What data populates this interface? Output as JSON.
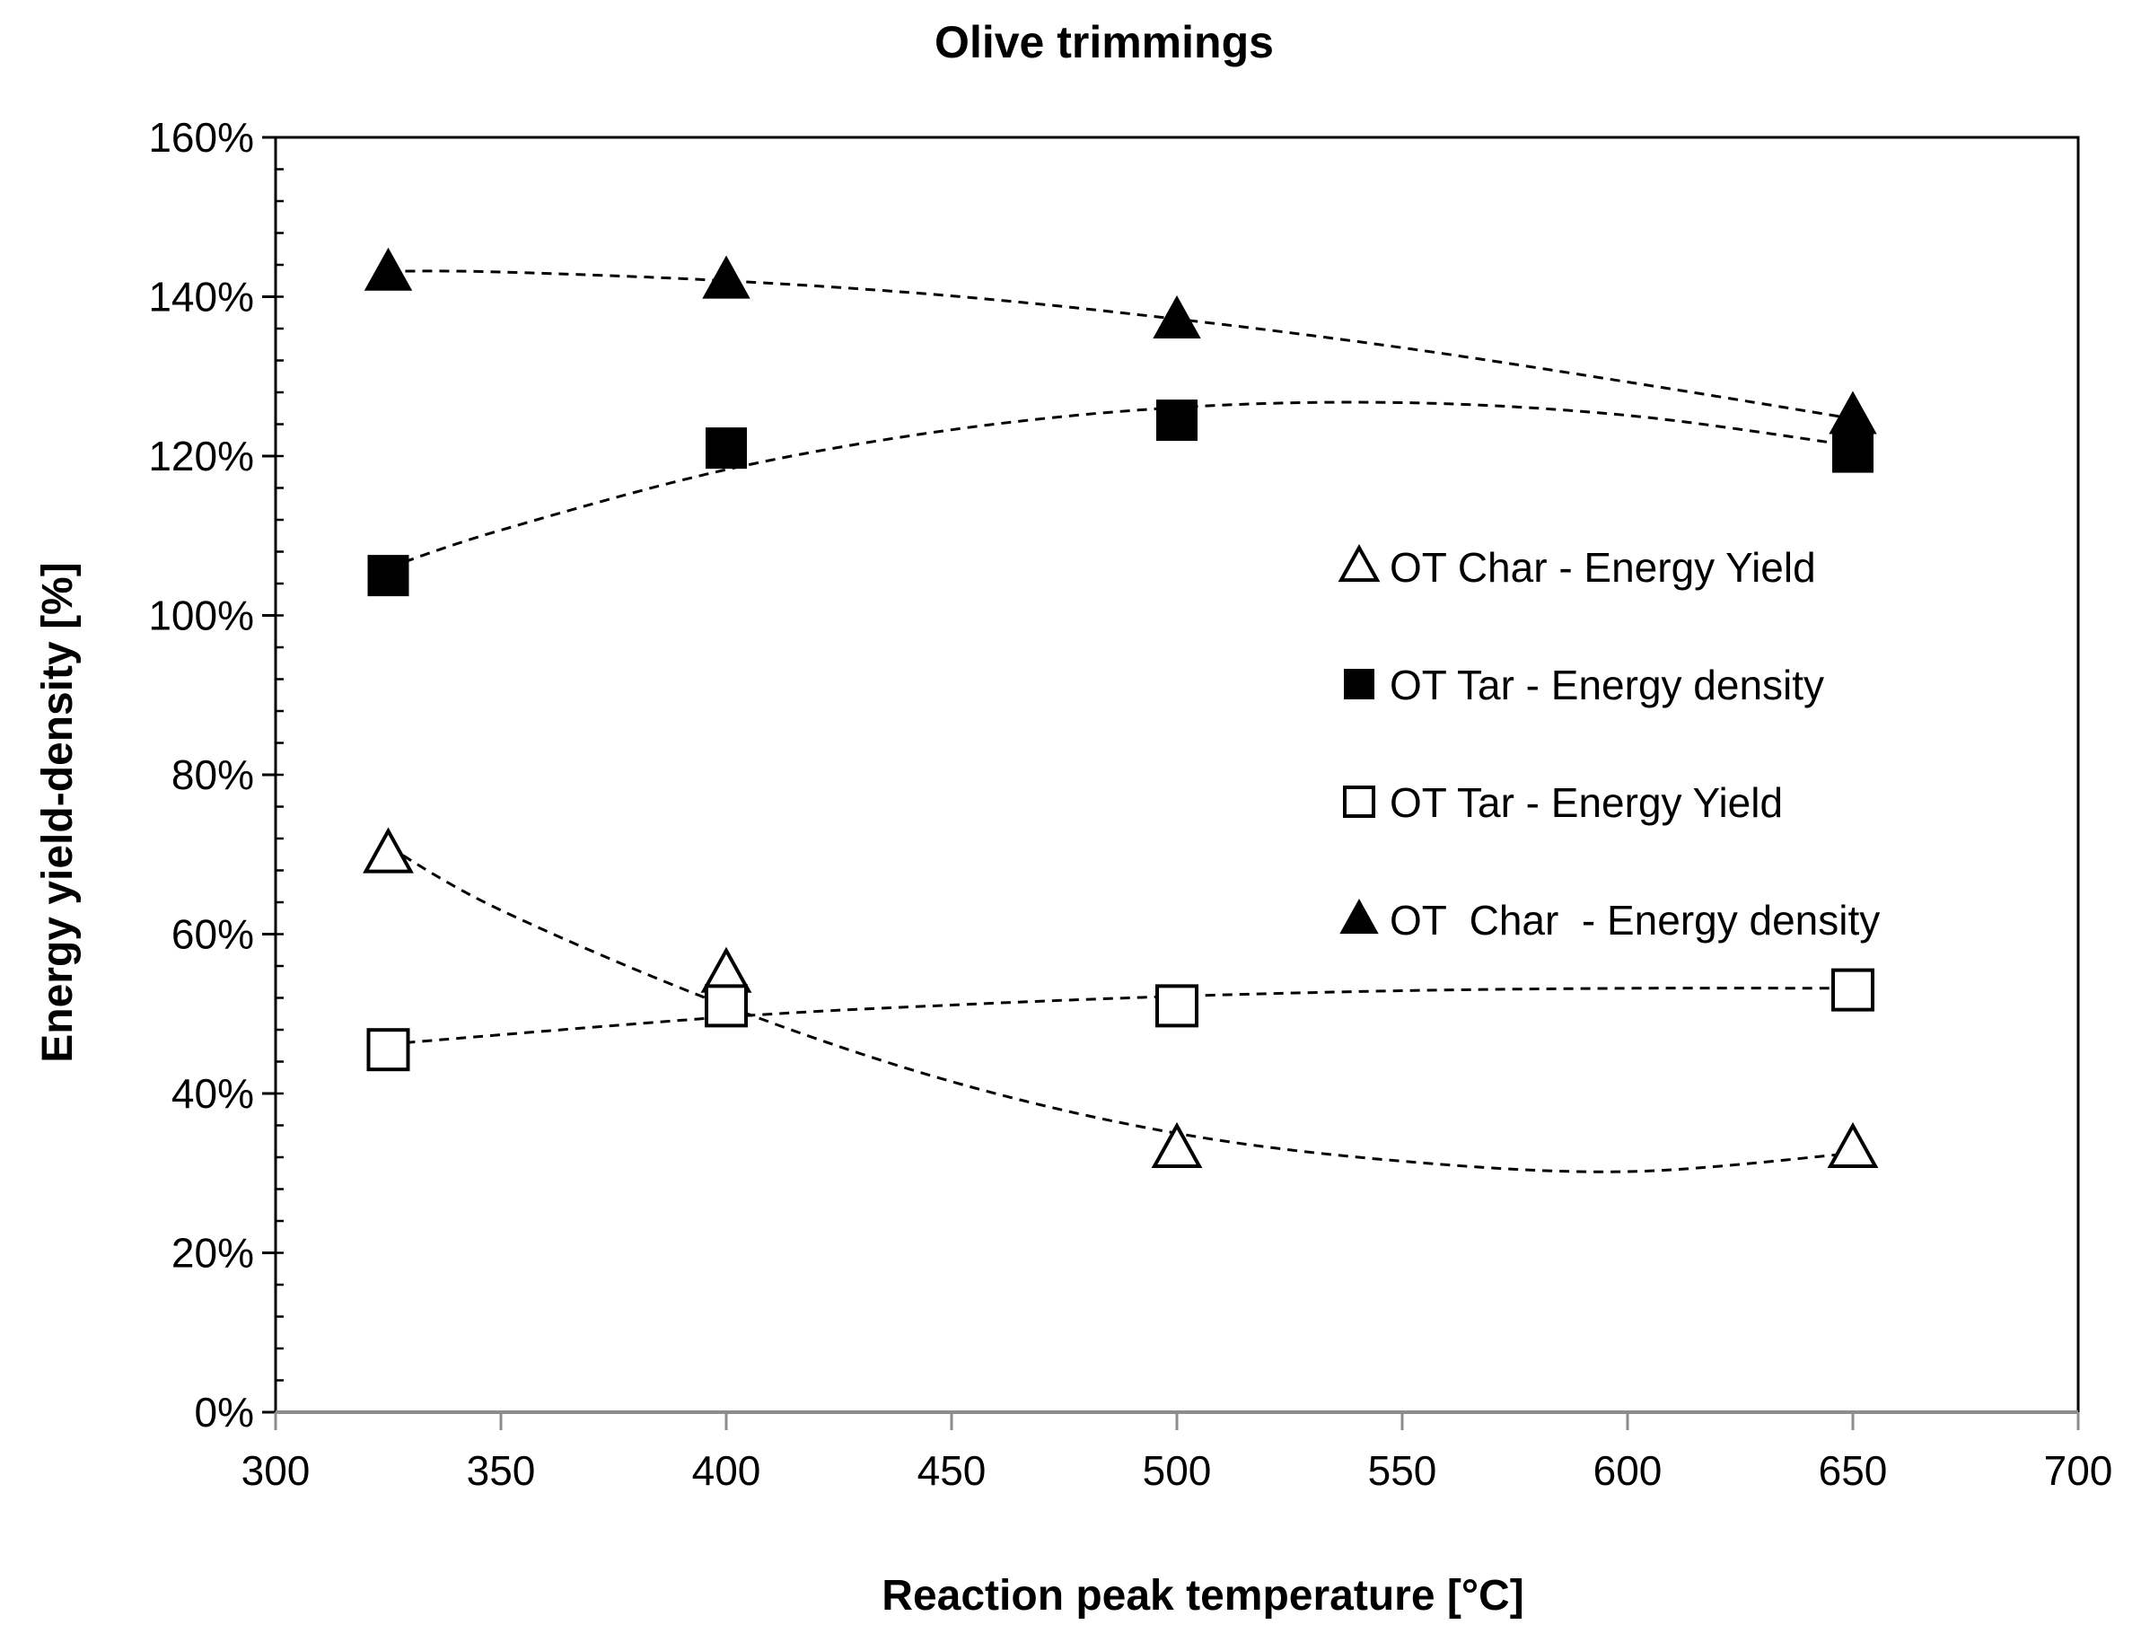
{
  "chart_data": {
    "type": "scatter",
    "title": "Olive trimmings",
    "xlabel": "Reaction peak temperature [°C]",
    "ylabel": "Energy yield-density [%]",
    "xlim": [
      300,
      700
    ],
    "ylim": [
      0,
      160
    ],
    "x_ticks": [
      300,
      350,
      400,
      450,
      500,
      550,
      600,
      650,
      700
    ],
    "x_tick_labels": [
      "300",
      "350",
      "400",
      "450",
      "500",
      "550",
      "600",
      "650",
      "700"
    ],
    "y_ticks": [
      0,
      20,
      40,
      60,
      80,
      100,
      120,
      140,
      160
    ],
    "y_tick_labels": [
      "0%",
      "20%",
      "40%",
      "60%",
      "80%",
      "100%",
      "120%",
      "140%",
      "160%"
    ],
    "y_minor_step": 4,
    "grid": false,
    "legend_position": "right",
    "trendline": "dashed polynomial",
    "series": [
      {
        "name": "OT Char - Energy Yield",
        "marker": "triangle-open",
        "x": [
          325,
          400,
          500,
          650
        ],
        "y": [
          70,
          55,
          33,
          33
        ],
        "fit": [
          [
            325,
            71
          ],
          [
            350,
            63
          ],
          [
            400,
            51
          ],
          [
            450,
            41.5
          ],
          [
            500,
            35
          ],
          [
            550,
            31.5
          ],
          [
            600,
            30.2
          ],
          [
            650,
            32.5
          ]
        ]
      },
      {
        "name": "OT Tar - Energy density",
        "marker": "square-filled",
        "x": [
          325,
          400,
          500,
          650
        ],
        "y": [
          105,
          121,
          124.5,
          120.5
        ],
        "fit": [
          [
            325,
            106
          ],
          [
            350,
            110.7
          ],
          [
            400,
            118.3
          ],
          [
            450,
            123.3
          ],
          [
            500,
            126.1
          ],
          [
            550,
            126.7
          ],
          [
            600,
            125.1
          ],
          [
            650,
            121.3
          ]
        ]
      },
      {
        "name": "OT Tar - Energy Yield",
        "marker": "square-open",
        "x": [
          325,
          400,
          500,
          650
        ],
        "y": [
          45.5,
          51,
          51,
          53
        ],
        "fit": [
          [
            325,
            46.2
          ],
          [
            400,
            49.6
          ],
          [
            450,
            51.1
          ],
          [
            500,
            52.2
          ],
          [
            550,
            52.9
          ],
          [
            600,
            53.2
          ],
          [
            650,
            53.2
          ]
        ]
      },
      {
        "name": "OT  Char  - Energy density",
        "marker": "triangle-filled",
        "x": [
          325,
          400,
          500,
          650
        ],
        "y": [
          143,
          142,
          137,
          125
        ],
        "fit": [
          [
            325,
            143.2
          ],
          [
            350,
            143.1
          ],
          [
            400,
            142
          ],
          [
            450,
            140.1
          ],
          [
            500,
            137.2
          ],
          [
            550,
            133.6
          ],
          [
            600,
            129.3
          ],
          [
            650,
            124.7
          ]
        ]
      }
    ]
  }
}
